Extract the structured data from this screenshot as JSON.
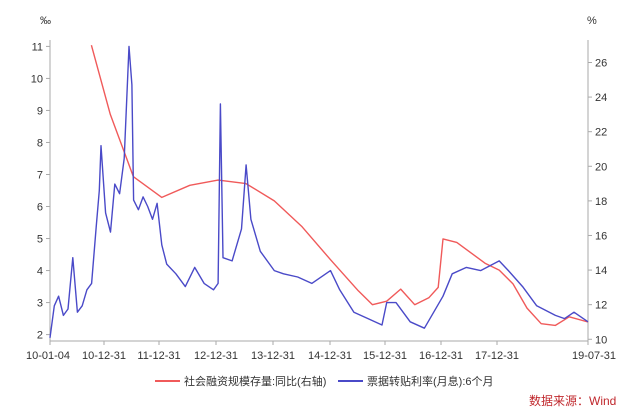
{
  "chart_data": {
    "type": "line",
    "left_unit": "‰",
    "right_unit": "%",
    "x_ticks": [
      "10-01-04",
      "10-12-31",
      "11-12-31",
      "12-12-31",
      "13-12-31",
      "14-12-31",
      "15-12-31",
      "16-12-31",
      "17-12-31",
      "19-07-31"
    ],
    "x_range": [
      "2010-01-04",
      "2019-07-31"
    ],
    "y_left_ticks": [
      "2",
      "3",
      "4",
      "5",
      "6",
      "7",
      "8",
      "9",
      "10",
      "11"
    ],
    "y_left_range": [
      1.8,
      11.2
    ],
    "y_right_ticks": [
      "10",
      "12",
      "14",
      "16",
      "18",
      "20",
      "22",
      "24",
      "26"
    ],
    "y_right_range": [
      9.9,
      27.3
    ],
    "grid": false,
    "legend_position": "bottom",
    "series": [
      {
        "name": "社会融资规模存量:同比(右轴)",
        "axis": "right",
        "color": "#f05a5a",
        "points": [
          [
            "2010-09-30",
            27.0
          ],
          [
            "2011-01-31",
            23.0
          ],
          [
            "2011-06-30",
            19.4
          ],
          [
            "2011-12-31",
            18.2
          ],
          [
            "2012-06-30",
            18.9
          ],
          [
            "2012-12-31",
            19.2
          ],
          [
            "2013-06-30",
            19.0
          ],
          [
            "2013-12-31",
            18.0
          ],
          [
            "2014-06-30",
            16.5
          ],
          [
            "2014-12-31",
            14.6
          ],
          [
            "2015-06-30",
            12.8
          ],
          [
            "2015-09-30",
            12.0
          ],
          [
            "2015-12-31",
            12.2
          ],
          [
            "2016-03-31",
            12.9
          ],
          [
            "2016-06-30",
            12.0
          ],
          [
            "2016-09-30",
            12.4
          ],
          [
            "2016-11-30",
            13.0
          ],
          [
            "2016-12-31",
            15.8
          ],
          [
            "2017-03-31",
            15.6
          ],
          [
            "2017-06-30",
            15.0
          ],
          [
            "2017-09-30",
            14.4
          ],
          [
            "2017-12-31",
            14.0
          ],
          [
            "2018-03-31",
            13.2
          ],
          [
            "2018-06-30",
            11.8
          ],
          [
            "2018-09-30",
            10.9
          ],
          [
            "2018-12-31",
            10.8
          ],
          [
            "2019-03-31",
            11.3
          ],
          [
            "2019-07-31",
            11.0
          ]
        ]
      },
      {
        "name": "票据转贴利率(月息):6个月",
        "axis": "left",
        "color": "#4a4ac8",
        "points": [
          [
            "2010-01-04",
            1.9
          ],
          [
            "2010-02-01",
            2.9
          ],
          [
            "2010-03-01",
            3.2
          ],
          [
            "2010-04-01",
            2.6
          ],
          [
            "2010-05-01",
            2.8
          ],
          [
            "2010-06-01",
            4.4
          ],
          [
            "2010-07-01",
            2.7
          ],
          [
            "2010-08-01",
            2.9
          ],
          [
            "2010-09-01",
            3.4
          ],
          [
            "2010-10-01",
            3.6
          ],
          [
            "2010-11-01",
            5.4
          ],
          [
            "2010-11-20",
            6.5
          ],
          [
            "2010-12-01",
            7.9
          ],
          [
            "2010-12-31",
            5.8
          ],
          [
            "2011-02-01",
            5.2
          ],
          [
            "2011-03-01",
            6.7
          ],
          [
            "2011-04-01",
            6.4
          ],
          [
            "2011-05-01",
            7.5
          ],
          [
            "2011-06-01",
            11.0
          ],
          [
            "2011-06-20",
            9.8
          ],
          [
            "2011-07-01",
            6.2
          ],
          [
            "2011-08-01",
            5.9
          ],
          [
            "2011-09-01",
            6.3
          ],
          [
            "2011-10-01",
            6.0
          ],
          [
            "2011-11-01",
            5.6
          ],
          [
            "2011-12-01",
            6.1
          ],
          [
            "2011-12-31",
            4.8
          ],
          [
            "2012-02-01",
            4.2
          ],
          [
            "2012-04-01",
            3.9
          ],
          [
            "2012-06-01",
            3.5
          ],
          [
            "2012-08-01",
            4.1
          ],
          [
            "2012-10-01",
            3.6
          ],
          [
            "2012-12-01",
            3.4
          ],
          [
            "2012-12-31",
            3.6
          ],
          [
            "2013-01-15",
            9.2
          ],
          [
            "2013-02-01",
            4.4
          ],
          [
            "2013-04-01",
            4.3
          ],
          [
            "2013-06-01",
            5.3
          ],
          [
            "2013-07-01",
            7.3
          ],
          [
            "2013-08-01",
            5.6
          ],
          [
            "2013-10-01",
            4.6
          ],
          [
            "2013-12-31",
            4.0
          ],
          [
            "2014-03-01",
            3.9
          ],
          [
            "2014-06-01",
            3.8
          ],
          [
            "2014-09-01",
            3.6
          ],
          [
            "2014-12-31",
            4.0
          ],
          [
            "2015-03-01",
            3.4
          ],
          [
            "2015-06-01",
            2.7
          ],
          [
            "2015-09-01",
            2.5
          ],
          [
            "2015-12-01",
            2.3
          ],
          [
            "2015-12-31",
            3.0
          ],
          [
            "2016-03-01",
            3.0
          ],
          [
            "2016-06-01",
            2.4
          ],
          [
            "2016-09-01",
            2.2
          ],
          [
            "2016-12-31",
            3.2
          ],
          [
            "2017-03-01",
            3.9
          ],
          [
            "2017-06-01",
            4.1
          ],
          [
            "2017-09-01",
            4.0
          ],
          [
            "2017-12-31",
            4.3
          ],
          [
            "2018-03-01",
            4.0
          ],
          [
            "2018-06-01",
            3.5
          ],
          [
            "2018-09-01",
            2.9
          ],
          [
            "2018-12-31",
            2.6
          ],
          [
            "2019-03-01",
            2.5
          ],
          [
            "2019-05-01",
            2.7
          ],
          [
            "2019-07-31",
            2.4
          ]
        ]
      }
    ],
    "source_note": "数据来源：Wind"
  },
  "colors": {
    "axis": "#aaaaaa",
    "text": "#333333",
    "source": "#c0282d"
  }
}
